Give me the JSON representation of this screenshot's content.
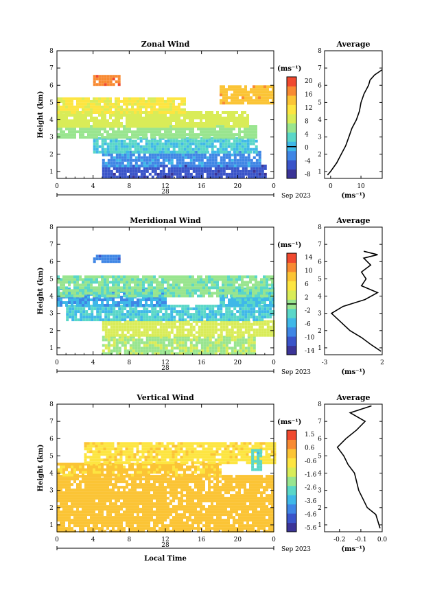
{
  "figure": {
    "date_label": "Sep 2023",
    "day_label": "28",
    "xlabel": "Local Time"
  },
  "chart_data": [
    {
      "type": "heatmap",
      "title": "Zonal Wind",
      "ylabel": "Height (km)",
      "xlabel": "",
      "x_ticks": [
        "0",
        "4",
        "8",
        "12",
        "16",
        "20",
        "0"
      ],
      "xlim": [
        0,
        24
      ],
      "ylim": [
        0.6,
        8
      ],
      "y_ticks": [
        "1",
        "2",
        "3",
        "4",
        "5",
        "6",
        "7",
        "8"
      ],
      "colorbar": {
        "unit": "(ms⁻¹)",
        "ticks": [
          "20",
          "16",
          "12",
          "8",
          "4",
          "0",
          "-4",
          "-8"
        ],
        "range": [
          -10,
          22
        ],
        "zero_line": 0
      },
      "field_bands": [
        {
          "z_from": 0.7,
          "z_to": 1.4,
          "t_from": 5,
          "t_to": 23,
          "value": -6
        },
        {
          "z_from": 1.4,
          "z_to": 2.2,
          "t_from": 5,
          "t_to": 22.5,
          "value": -2
        },
        {
          "z_from": 2.2,
          "z_to": 3.0,
          "t_from": 4,
          "t_to": 22,
          "value": 2
        },
        {
          "z_from": 3.0,
          "z_to": 3.7,
          "t_from": 0,
          "t_to": 22,
          "value": 6
        },
        {
          "z_from": 3.7,
          "z_to": 4.5,
          "t_from": 0,
          "t_to": 21,
          "value": 9
        },
        {
          "z_from": 4.5,
          "z_to": 5.3,
          "t_from": 0,
          "t_to": 14,
          "value": 11
        },
        {
          "z_from": 5.0,
          "z_to": 6.0,
          "t_from": 18,
          "t_to": 24,
          "value": 15
        },
        {
          "z_from": 6.0,
          "z_to": 6.6,
          "t_from": 4,
          "t_to": 7,
          "value": 18
        }
      ],
      "average": {
        "title": "Average",
        "unit": "(ms⁻¹)",
        "x_ticks": [
          "0",
          "10"
        ],
        "xlim": [
          -2,
          17
        ],
        "height": [
          0.8,
          1.0,
          1.5,
          2.0,
          2.5,
          3.0,
          3.5,
          4.0,
          4.5,
          5.0,
          5.5,
          6.0,
          6.3,
          6.6,
          6.9
        ],
        "value": [
          -1,
          0,
          2,
          3.5,
          5,
          6,
          7,
          8.5,
          9.5,
          10,
          11,
          12.5,
          13,
          14.5,
          17
        ]
      }
    },
    {
      "type": "heatmap",
      "title": "Meridional Wind",
      "ylabel": "Height (km)",
      "xlabel": "",
      "x_ticks": [
        "0",
        "4",
        "8",
        "12",
        "16",
        "20",
        "0"
      ],
      "xlim": [
        0,
        24
      ],
      "ylim": [
        0.6,
        8
      ],
      "y_ticks": [
        "1",
        "2",
        "3",
        "4",
        "5",
        "6",
        "7",
        "8"
      ],
      "colorbar": {
        "unit": "(ms⁻¹)",
        "ticks": [
          "14",
          "10",
          "6",
          "2",
          "-2",
          "-6",
          "-10",
          "-14"
        ],
        "range": [
          -16,
          16
        ],
        "zero_line": 0
      },
      "field_bands": [
        {
          "z_from": 0.7,
          "z_to": 1.7,
          "t_from": 5,
          "t_to": 22,
          "value": 1
        },
        {
          "z_from": 1.7,
          "z_to": 2.6,
          "t_from": 5,
          "t_to": 24,
          "value": 3
        },
        {
          "z_from": 2.6,
          "z_to": 3.5,
          "t_from": 1,
          "t_to": 24,
          "value": -4
        },
        {
          "z_from": 3.5,
          "z_to": 4.5,
          "t_from": 0,
          "t_to": 12,
          "value": -7
        },
        {
          "z_from": 3.5,
          "z_to": 4.5,
          "t_from": 18,
          "t_to": 24,
          "value": -5
        },
        {
          "z_from": 4.0,
          "z_to": 5.2,
          "t_from": 0,
          "t_to": 24,
          "value": -1
        },
        {
          "z_from": 6.0,
          "z_to": 6.4,
          "t_from": 4,
          "t_to": 7,
          "value": -9
        }
      ],
      "average": {
        "title": "Average",
        "unit": "(ms⁻¹)",
        "x_ticks": [
          "-3",
          "2"
        ],
        "xlim": [
          -3,
          2
        ],
        "height": [
          0.8,
          1.2,
          1.6,
          2.0,
          2.5,
          3.0,
          3.4,
          3.8,
          4.2,
          4.6,
          5.0,
          5.4,
          5.8,
          6.2,
          6.4,
          6.6
        ],
        "value": [
          1.9,
          1.0,
          0.2,
          -0.8,
          -1.6,
          -2.4,
          -1.4,
          0.5,
          1.6,
          0.2,
          0.6,
          0.2,
          1.0,
          0.4,
          1.6,
          0.4
        ]
      }
    },
    {
      "type": "heatmap",
      "title": "Vertical Wind",
      "ylabel": "Height (km)",
      "xlabel": "Local Time",
      "x_ticks": [
        "0",
        "4",
        "8",
        "12",
        "16",
        "20",
        "0"
      ],
      "xlim": [
        0,
        24
      ],
      "ylim": [
        0.6,
        8
      ],
      "y_ticks": [
        "1",
        "2",
        "3",
        "4",
        "5",
        "6",
        "7",
        "8"
      ],
      "colorbar": {
        "unit": "(ms⁻¹)",
        "ticks": [
          "1.5",
          "0.6",
          "-0.6",
          "-1.6",
          "-2.6",
          "-3.6",
          "-4.6",
          "-5.6"
        ],
        "range": [
          -6.0,
          2.0
        ],
        "zero_line": null
      },
      "field_bands": [
        {
          "z_from": 0.7,
          "z_to": 3.9,
          "t_from": 0,
          "t_to": 24,
          "value": 0.2
        },
        {
          "z_from": 3.9,
          "z_to": 4.6,
          "t_from": 0,
          "t_to": 18,
          "value": 0.0
        },
        {
          "z_from": 4.6,
          "z_to": 5.8,
          "t_from": 3,
          "t_to": 24,
          "value": -0.4
        },
        {
          "z_from": 4.2,
          "z_to": 5.4,
          "t_from": 21.5,
          "t_to": 22.5,
          "value": -2.8
        }
      ],
      "average": {
        "title": "Average",
        "unit": "(ms⁻¹)",
        "x_ticks": [
          "-0.2",
          "-0.1",
          "0.0"
        ],
        "xlim": [
          -0.27,
          0.0
        ],
        "height": [
          0.8,
          1.2,
          1.6,
          2.0,
          2.5,
          3.0,
          3.5,
          4.0,
          4.5,
          5.0,
          5.5,
          6.0,
          6.5,
          7.0,
          7.5,
          7.9
        ],
        "value": [
          -0.01,
          -0.02,
          -0.03,
          -0.07,
          -0.09,
          -0.11,
          -0.12,
          -0.13,
          -0.16,
          -0.18,
          -0.21,
          -0.17,
          -0.12,
          -0.08,
          -0.15,
          -0.05
        ]
      }
    }
  ]
}
